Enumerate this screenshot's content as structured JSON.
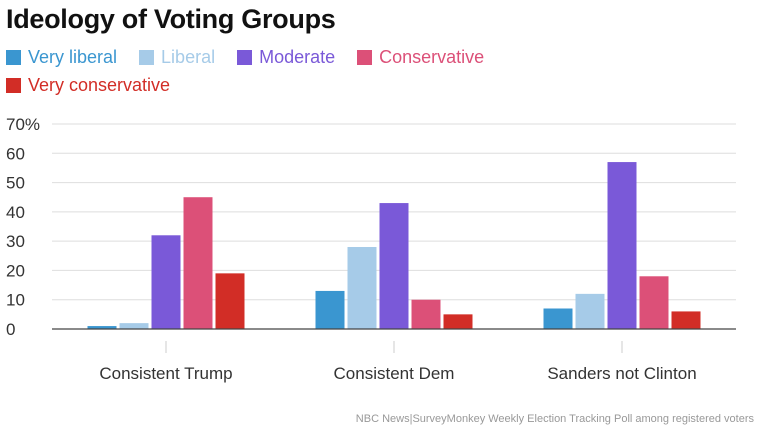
{
  "chart_data": {
    "type": "bar",
    "title": "Ideology of Voting Groups",
    "categories": [
      "Consistent Trump",
      "Consistent Dem",
      "Sanders not Clinton"
    ],
    "series": [
      {
        "name": "Very liberal",
        "color": "#3a96d0",
        "values": [
          1,
          13,
          7
        ]
      },
      {
        "name": "Liberal",
        "color": "#a6cbe8",
        "values": [
          2,
          28,
          12
        ]
      },
      {
        "name": "Moderate",
        "color": "#7a59d8",
        "values": [
          32,
          43,
          57
        ]
      },
      {
        "name": "Conservative",
        "color": "#dc5078",
        "values": [
          45,
          10,
          18
        ]
      },
      {
        "name": "Very conservative",
        "color": "#d22d26",
        "values": [
          19,
          5,
          6
        ]
      }
    ],
    "yticks": [
      "0",
      "10",
      "20",
      "30",
      "40",
      "50",
      "60",
      "70%"
    ],
    "ylim": [
      0,
      70
    ],
    "grid": true,
    "legend_position": "top",
    "source": "NBC News|SurveyMonkey Weekly Election Tracking Poll among registered voters"
  }
}
